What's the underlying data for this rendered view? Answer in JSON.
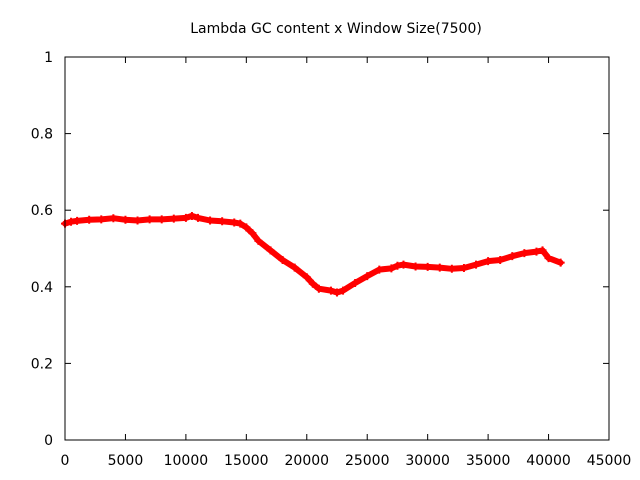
{
  "chart_data": {
    "type": "line",
    "title": "Lambda GC content x Window Size(7500)",
    "xlabel": "",
    "ylabel": "",
    "xlim": [
      0,
      45000
    ],
    "ylim": [
      0,
      1
    ],
    "x_ticks": [
      "0",
      "5000",
      "10000",
      "15000",
      "20000",
      "25000",
      "30000",
      "35000",
      "40000",
      "45000"
    ],
    "y_ticks": [
      "0",
      "0.2",
      "0.4",
      "0.6",
      "0.8",
      "1"
    ],
    "grid": false,
    "legend": "none",
    "series": [
      {
        "color": "#ff0000",
        "marker": "plus",
        "x": [
          0,
          500,
          1000,
          2000,
          3000,
          4000,
          5000,
          6000,
          7000,
          8000,
          9000,
          10000,
          10500,
          11000,
          12000,
          13000,
          14000,
          14500,
          15000,
          15500,
          16000,
          17000,
          18000,
          19000,
          20000,
          20500,
          21000,
          22000,
          22500,
          23000,
          24000,
          25000,
          26000,
          27000,
          27500,
          28000,
          29000,
          30000,
          31000,
          32000,
          33000,
          34000,
          35000,
          36000,
          37000,
          38000,
          39000,
          39500,
          40000,
          41000
        ],
        "y": [
          0.565,
          0.57,
          0.572,
          0.575,
          0.576,
          0.579,
          0.575,
          0.573,
          0.576,
          0.576,
          0.578,
          0.58,
          0.585,
          0.58,
          0.573,
          0.571,
          0.568,
          0.565,
          0.555,
          0.54,
          0.52,
          0.495,
          0.47,
          0.45,
          0.425,
          0.408,
          0.395,
          0.39,
          0.385,
          0.39,
          0.41,
          0.428,
          0.445,
          0.448,
          0.455,
          0.458,
          0.453,
          0.452,
          0.45,
          0.447,
          0.449,
          0.458,
          0.467,
          0.47,
          0.48,
          0.488,
          0.492,
          0.495,
          0.475,
          0.463
        ]
      }
    ]
  }
}
